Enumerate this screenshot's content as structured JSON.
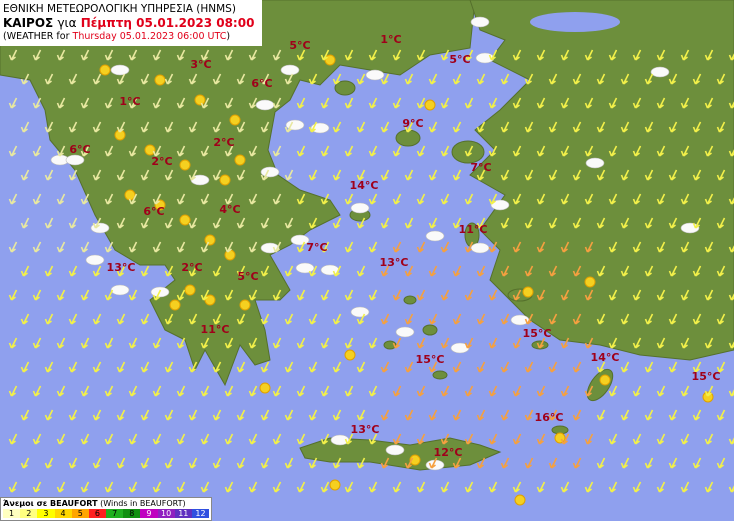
{
  "header": {
    "agency": "ΕΘΝΙΚΗ ΜΕΤΕΩΡΟΛΟΓΙΚΗ ΥΠΗΡΕΣΙΑ (HNMS)",
    "title_label": "ΚΑΙΡΟΣ",
    "title_for": "για",
    "title_time": "Πέμπτη 05.01.2023 08:00",
    "subtitle_open": "(WEATHER for",
    "subtitle_time": "Thursday 05.01.2023 06:00 UTC",
    "subtitle_close": ")"
  },
  "temperatures": [
    "5°C",
    "1°C",
    "3°C",
    "5°C",
    "6°C",
    "1°C",
    "9°C",
    "6°C",
    "2°C",
    "2°C",
    "7°C",
    "14°C",
    "6°C",
    "4°C",
    "11°C",
    "7°C",
    "13°C",
    "13°C",
    "2°C",
    "5°C",
    "11°C",
    "15°C",
    "15°C",
    "14°C",
    "15°C",
    "16°C",
    "13°C",
    "12°C"
  ],
  "legend": {
    "title": "Άνεμοι σε BEAUFORT",
    "subtitle": "(Winds in BEAUFORT)",
    "scale": [
      {
        "value": 1,
        "color": "#ffffc0"
      },
      {
        "value": 2,
        "color": "#ffff80"
      },
      {
        "value": 3,
        "color": "#ffff00"
      },
      {
        "value": 4,
        "color": "#ffd700"
      },
      {
        "value": 5,
        "color": "#ffa500"
      },
      {
        "value": 6,
        "color": "#ff2020"
      },
      {
        "value": 7,
        "color": "#20b020"
      },
      {
        "value": 8,
        "color": "#109010"
      },
      {
        "value": 9,
        "color": "#c000c0"
      },
      {
        "value": 10,
        "color": "#9020c0"
      },
      {
        "value": 11,
        "color": "#6030c0"
      },
      {
        "value": 12,
        "color": "#3050e0"
      }
    ]
  }
}
